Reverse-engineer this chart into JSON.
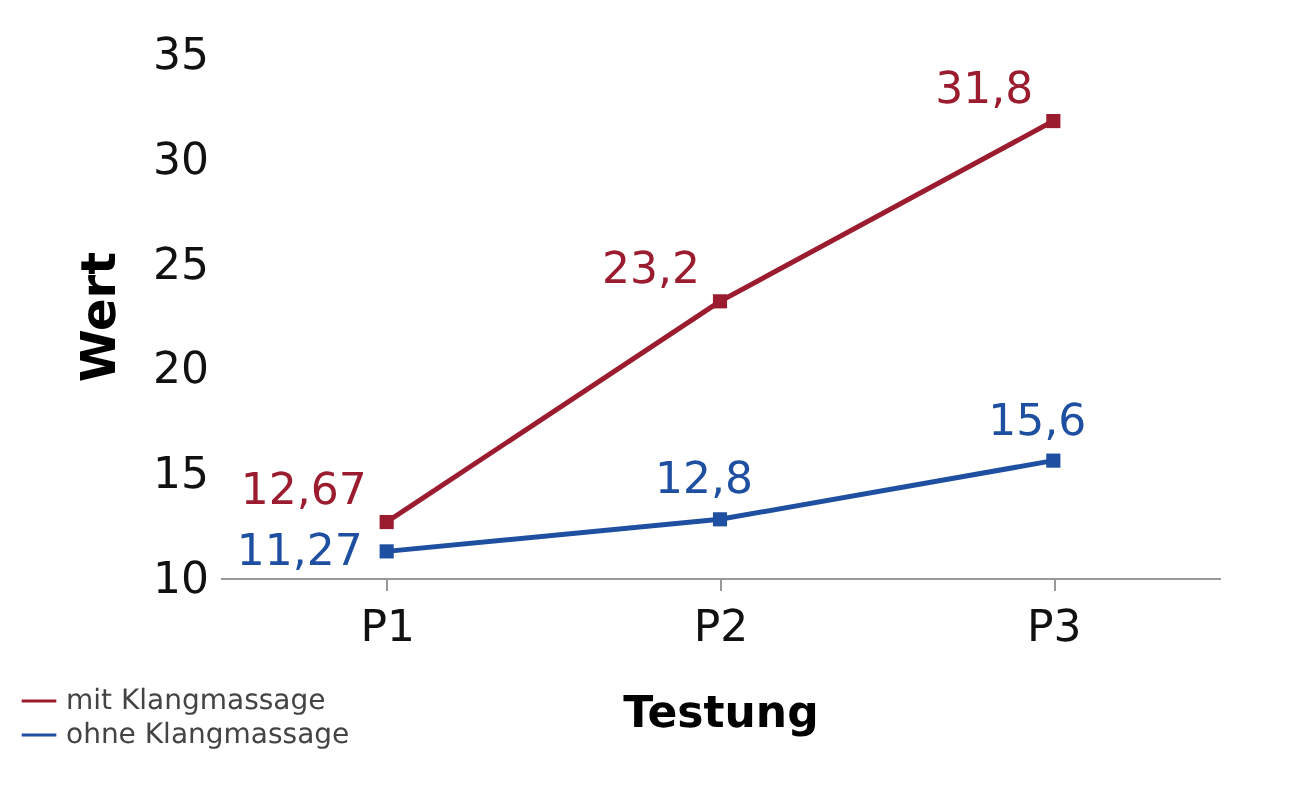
{
  "chart_data": {
    "type": "line",
    "xlabel": "Testung",
    "ylabel": "Wert",
    "categories": [
      "P1",
      "P2",
      "P3"
    ],
    "series": [
      {
        "name": "mit Klangmassage",
        "color": "#9b1c2e",
        "values": [
          12.67,
          23.2,
          31.8
        ],
        "value_labels": [
          "12,67",
          "23,2",
          "31,8"
        ]
      },
      {
        "name": "ohne Klangmassage",
        "color": "#1f4fa0",
        "values": [
          11.27,
          12.8,
          15.6
        ],
        "value_labels": [
          "11,27",
          "12,8",
          "15,6"
        ]
      }
    ],
    "ylim": [
      10,
      35
    ],
    "yticks": [
      10,
      15,
      20,
      25,
      30,
      35
    ],
    "grid": false,
    "legend": "bottom left",
    "marker": "square",
    "line_style": "solid"
  }
}
